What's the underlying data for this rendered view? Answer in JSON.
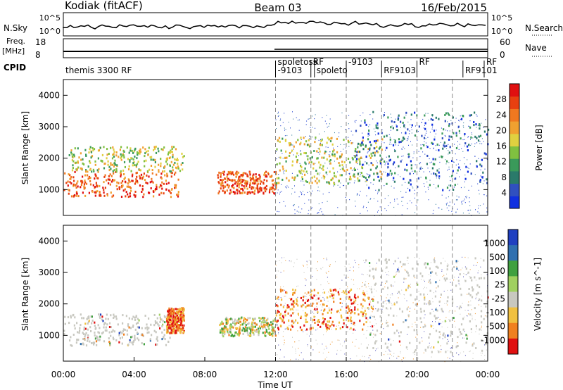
{
  "header": {
    "station": "Kodiak (fitACF)",
    "beam": "Beam 03",
    "date": "16/Feb/2015"
  },
  "sky_panel": {
    "left_label": "N.Sky",
    "right_label": "N.Search",
    "left_ticks": [
      "10^5",
      "10^0"
    ],
    "right_ticks": [
      "10^5",
      "10^0"
    ]
  },
  "freq_panel": {
    "left_label_line1": "Freq.",
    "left_label_line2": "[MHz]",
    "left_ticks": [
      "18",
      "8"
    ],
    "right_label": "Nave",
    "right_ticks": [
      "60",
      "0"
    ]
  },
  "cpid": {
    "label": "CPID",
    "items": [
      {
        "text": "themis 3300 RF",
        "hour": 0.0
      },
      {
        "text": "spoletoss",
        "hour": 12.0
      },
      {
        "text": "-9103",
        "hour": 12.0
      },
      {
        "text": "RF",
        "hour": 14.0
      },
      {
        "text": "spoleto",
        "hour": 14.2
      },
      {
        "text": "-9103",
        "hour": 16.0
      },
      {
        "text": "RF9103",
        "hour": 18.0
      },
      {
        "text": "RF",
        "hour": 20.0
      },
      {
        "text": "RF9101",
        "hour": 22.6
      },
      {
        "text": "RF",
        "hour": 23.8
      }
    ]
  },
  "chart_data": [
    {
      "type": "heatmap",
      "name": "power",
      "title": "Beam 03",
      "ylabel": "Slant Range [km]",
      "xlabel": "",
      "xlim": [
        "00:00",
        "24:00"
      ],
      "ylim": [
        180,
        4500
      ],
      "yticks": [
        1000,
        2000,
        3000,
        4000
      ],
      "colorbar": {
        "label": "Power [dB]",
        "ticks": [
          "4",
          "8",
          "12",
          "16",
          "20",
          "24",
          "28"
        ],
        "colors": [
          "#1030e0",
          "#3050c0",
          "#2a7a6a",
          "#3a9a5a",
          "#80c040",
          "#e0d040",
          "#f0a030",
          "#f07820",
          "#e84010",
          "#e01010"
        ]
      },
      "echo_regions": [
        {
          "t0": 0.0,
          "t1": 6.5,
          "r0": 800,
          "r1": 1600,
          "level": "high"
        },
        {
          "t0": 0.3,
          "t1": 6.8,
          "r0": 1600,
          "r1": 2400,
          "level": "mid"
        },
        {
          "t0": 8.7,
          "t1": 12.0,
          "r0": 900,
          "r1": 1600,
          "level": "high"
        },
        {
          "t0": 12.0,
          "t1": 18.0,
          "r0": 1200,
          "r1": 2700,
          "level": "mid"
        },
        {
          "t0": 16.5,
          "t1": 24.0,
          "r0": 1000,
          "r1": 3500,
          "level": "low"
        }
      ]
    },
    {
      "type": "heatmap",
      "name": "velocity",
      "ylabel": "Slant Range [km]",
      "xlabel": "Time UT",
      "xlim": [
        "00:00",
        "24:00"
      ],
      "ylim": [
        180,
        4500
      ],
      "yticks": [
        1000,
        2000,
        3000,
        4000
      ],
      "xticks": [
        "00:00",
        "04:00",
        "08:00",
        "12:00",
        "16:00",
        "20:00",
        "00:00"
      ],
      "colorbar": {
        "label": "Velocity [m s^-1]",
        "ticks": [
          "1000",
          "500",
          "100",
          "25",
          "-25",
          "-100",
          "-500",
          "-1000"
        ],
        "colors": [
          "#2040c0",
          "#3070b0",
          "#40a040",
          "#a0d060",
          "#c8c8c0",
          "#f0c040",
          "#f08020",
          "#e01010"
        ]
      },
      "echo_regions": [
        {
          "t0": 0.0,
          "t1": 6.0,
          "r0": 700,
          "r1": 1700,
          "level": "ground"
        },
        {
          "t0": 5.8,
          "t1": 6.8,
          "r0": 1100,
          "r1": 1900,
          "level": "away"
        },
        {
          "t0": 8.8,
          "t1": 12.0,
          "r0": 1000,
          "r1": 1600,
          "level": "mixed"
        },
        {
          "t0": 12.0,
          "t1": 17.5,
          "r0": 1200,
          "r1": 2500,
          "level": "away"
        },
        {
          "t0": 17.0,
          "t1": 24.0,
          "r0": 500,
          "r1": 3500,
          "level": "ground"
        }
      ]
    }
  ]
}
